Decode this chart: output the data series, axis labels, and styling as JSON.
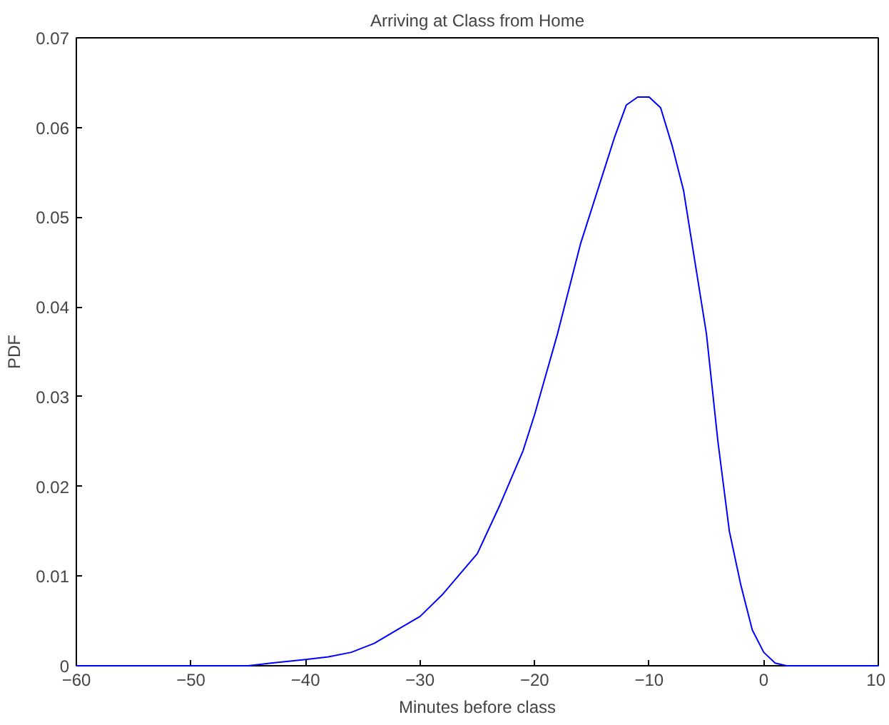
{
  "chart_data": {
    "type": "line",
    "title": "Arriving at Class from Home",
    "xlabel": "Minutes before class",
    "ylabel": "PDF",
    "xlim": [
      -60,
      10
    ],
    "ylim": [
      0,
      0.07
    ],
    "xticks": [
      -60,
      -50,
      -40,
      -30,
      -20,
      -10,
      0,
      10
    ],
    "yticks": [
      0,
      0.01,
      0.02,
      0.03,
      0.04,
      0.05,
      0.06,
      0.07
    ],
    "grid": false,
    "marker": "none",
    "line_style": "solid",
    "series": [
      {
        "color": "#0000ff",
        "x": [
          -60,
          -50,
          -45,
          -43,
          -40,
          -38,
          -36,
          -34,
          -32,
          -30,
          -28,
          -26,
          -25,
          -23,
          -21,
          -20,
          -18,
          -16,
          -14,
          -13,
          -12,
          -11,
          -10,
          -9,
          -8,
          -7,
          -6,
          -5,
          -4,
          -3,
          -2,
          -1,
          0,
          1,
          2,
          5,
          10
        ],
        "values": [
          0,
          0,
          0,
          0.0003,
          0.0007,
          0.001,
          0.0015,
          0.0025,
          0.004,
          0.0055,
          0.008,
          0.011,
          0.0125,
          0.018,
          0.024,
          0.028,
          0.037,
          0.047,
          0.055,
          0.059,
          0.0625,
          0.0634,
          0.0634,
          0.0622,
          0.058,
          0.053,
          0.045,
          0.037,
          0.025,
          0.015,
          0.009,
          0.004,
          0.0015,
          0.0003,
          0,
          0,
          0
        ]
      }
    ]
  }
}
